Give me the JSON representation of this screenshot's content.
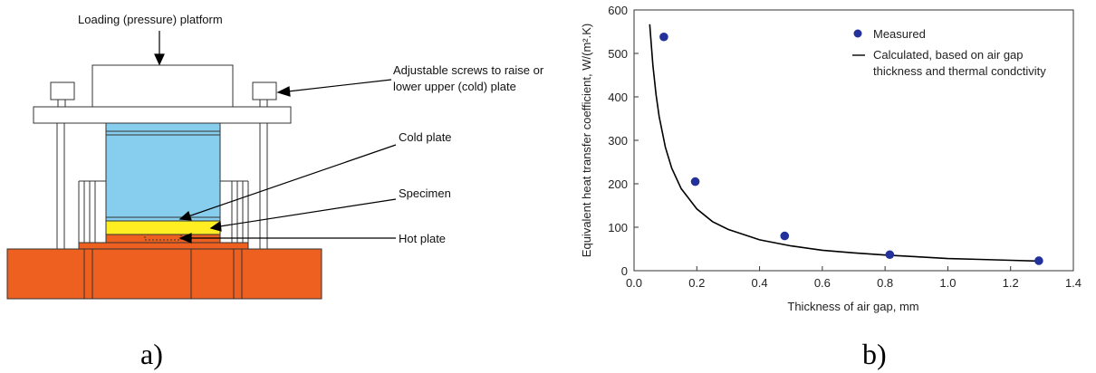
{
  "panel_a": {
    "labels": {
      "loading": "Loading (pressure) platform",
      "screws_line1": "Adjustable screws to raise or",
      "screws_line2": "lower upper (cold) plate",
      "cold_plate": "Cold plate",
      "specimen": "Specimen",
      "hot_plate": "Hot plate"
    },
    "caption": "a)",
    "colors": {
      "cold_plate": "#87ceee",
      "specimen": "#ffee22",
      "hot_plate": "#ee6020"
    }
  },
  "panel_b": {
    "caption": "b)",
    "colors": {
      "measured_marker": "#23319a",
      "calculated_line": "#000000"
    }
  },
  "chart_data": {
    "type": "scatter",
    "xlabel": "Thickness of air gap, mm",
    "ylabel": "Equivalent heat transfer coefficient, W/(m².K)",
    "xlim": [
      0.0,
      1.4
    ],
    "ylim": [
      0,
      600
    ],
    "x_ticks": [
      "0.0",
      "0.2",
      "0.4",
      "0.6",
      "0.8",
      "1.0",
      "1.2",
      "1.4"
    ],
    "y_ticks": [
      "0",
      "100",
      "200",
      "300",
      "400",
      "500",
      "600"
    ],
    "grid": false,
    "legend_position": "top-right",
    "series": [
      {
        "name": "Measured",
        "kind": "scatter",
        "x": [
          0.095,
          0.195,
          0.48,
          0.815,
          1.29
        ],
        "y": [
          538,
          205,
          80,
          37,
          23
        ]
      },
      {
        "name": "Calculated, based on air gap thickness and thermal condctivity",
        "legend_lines": [
          "Calculated, based on air gap",
          "thickness and thermal condctivity"
        ],
        "kind": "line",
        "x": [
          0.05,
          0.06,
          0.07,
          0.08,
          0.1,
          0.12,
          0.15,
          0.2,
          0.25,
          0.3,
          0.4,
          0.5,
          0.6,
          0.7,
          0.8,
          0.9,
          1.0,
          1.1,
          1.2,
          1.29
        ],
        "y": [
          567,
          473,
          405,
          355,
          284,
          236,
          189,
          142,
          113,
          95,
          71,
          57,
          47,
          41,
          36,
          32,
          28,
          26,
          24,
          22
        ]
      }
    ]
  }
}
